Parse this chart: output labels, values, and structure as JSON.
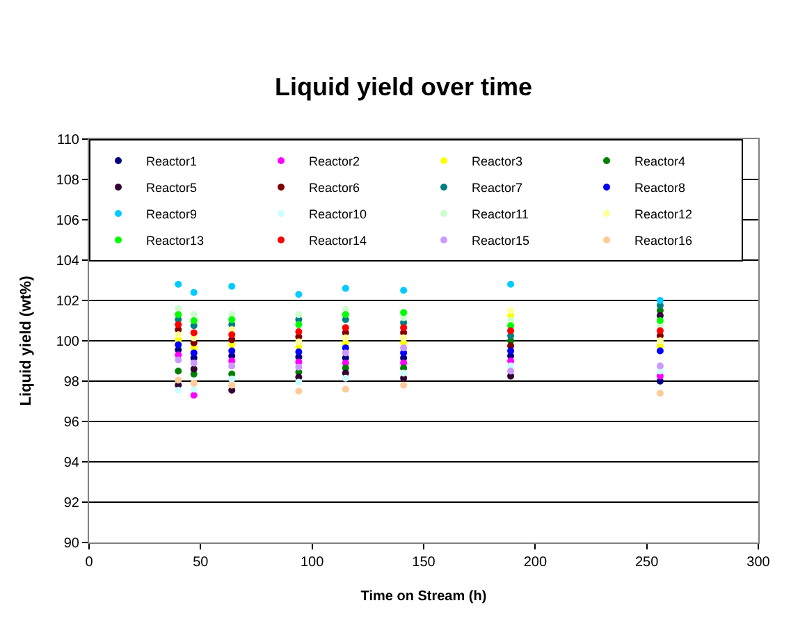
{
  "chart_data": {
    "type": "scatter",
    "title": "Liquid yield over time",
    "xlabel": "Time on Stream (h)",
    "ylabel": "Liquid yield (wt%)",
    "x": [
      40,
      47,
      64,
      94,
      115,
      141,
      189,
      256
    ],
    "xlim": [
      0,
      300
    ],
    "xticks": [
      0,
      50,
      100,
      150,
      200,
      250,
      300
    ],
    "ylim": [
      90,
      110
    ],
    "yticks": [
      90,
      92,
      94,
      96,
      98,
      100,
      102,
      104,
      106,
      108,
      110
    ],
    "grid": "y",
    "legend": "top",
    "marker": "circle",
    "series": [
      {
        "name": "Reactor1",
        "color": "#000080",
        "values": [
          99.55,
          99.15,
          99.25,
          99.2,
          99.15,
          99.15,
          99.25,
          98.0
        ]
      },
      {
        "name": "Reactor2",
        "color": "#ff00ff",
        "values": [
          99.3,
          97.3,
          99.0,
          98.95,
          98.9,
          98.9,
          99.0,
          98.25
        ]
      },
      {
        "name": "Reactor3",
        "color": "#ffff00",
        "values": [
          100.05,
          99.65,
          99.8,
          99.7,
          99.9,
          99.9,
          101.25,
          99.75
        ]
      },
      {
        "name": "Reactor4",
        "color": "#008000",
        "values": [
          98.5,
          98.35,
          98.35,
          98.45,
          98.65,
          98.65,
          100.0,
          101.5
        ]
      },
      {
        "name": "Reactor5",
        "color": "#330033",
        "values": [
          97.8,
          98.6,
          97.55,
          98.2,
          98.4,
          98.15,
          98.25,
          101.25
        ]
      },
      {
        "name": "Reactor6",
        "color": "#800000",
        "values": [
          100.55,
          99.9,
          100.05,
          100.2,
          100.4,
          100.4,
          99.75,
          100.25
        ]
      },
      {
        "name": "Reactor7",
        "color": "#008080",
        "values": [
          101.05,
          100.75,
          100.8,
          101.05,
          101.05,
          100.9,
          100.25,
          101.75
        ]
      },
      {
        "name": "Reactor8",
        "color": "#0000ff",
        "values": [
          99.8,
          99.4,
          99.5,
          99.45,
          99.65,
          99.4,
          99.5,
          99.5
        ]
      },
      {
        "name": "Reactor9",
        "color": "#00ccff",
        "values": [
          102.8,
          102.4,
          102.7,
          102.3,
          102.6,
          102.5,
          102.8,
          102.0
        ]
      },
      {
        "name": "Reactor10",
        "color": "#ccffff",
        "values": [
          97.55,
          97.6,
          98.1,
          97.95,
          98.15,
          98.4,
          98.75,
          98.5
        ]
      },
      {
        "name": "Reactor11",
        "color": "#ccffcc",
        "values": [
          101.6,
          101.3,
          101.3,
          101.3,
          101.55,
          101.15,
          101.0,
          100.75
        ]
      },
      {
        "name": "Reactor12",
        "color": "#ffff99",
        "values": [
          100.3,
          100.15,
          100.55,
          99.95,
          100.15,
          100.15,
          101.5,
          100.0
        ]
      },
      {
        "name": "Reactor13",
        "color": "#00ff00",
        "values": [
          101.3,
          101.0,
          101.05,
          100.8,
          101.3,
          101.4,
          100.75,
          101.0
        ]
      },
      {
        "name": "Reactor14",
        "color": "#ff0000",
        "values": [
          100.8,
          100.4,
          100.3,
          100.45,
          100.65,
          100.65,
          100.5,
          100.5
        ]
      },
      {
        "name": "Reactor15",
        "color": "#cc99ff",
        "values": [
          99.05,
          98.9,
          98.75,
          98.7,
          99.4,
          99.65,
          98.5,
          98.75
        ]
      },
      {
        "name": "Reactor16",
        "color": "#ffcc99",
        "values": [
          98.05,
          97.9,
          97.8,
          97.5,
          97.6,
          97.8,
          null,
          97.4
        ]
      }
    ]
  }
}
